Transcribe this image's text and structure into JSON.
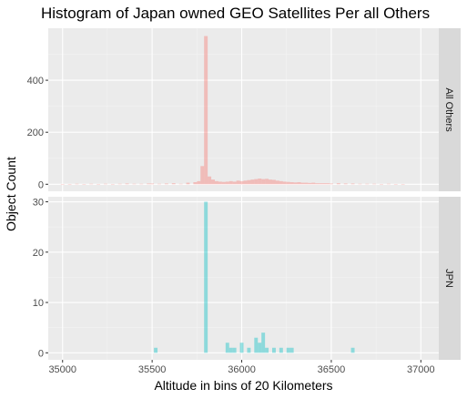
{
  "chart_data": {
    "type": "bar",
    "title": "Histogram of Japan owned GEO Satellites Per all Others",
    "xlabel": "Altitude in bins of 20 Kilometers",
    "ylabel": "Object Count",
    "bin_width": 20,
    "xlim": [
      34920,
      37100
    ],
    "x_ticks": [
      35000,
      35500,
      36000,
      36500,
      37000
    ],
    "grid": true,
    "legend": "none",
    "panels": [
      {
        "name": "All Others",
        "color": "#f8766d",
        "ylim": [
          0,
          600
        ],
        "y_ticks": [
          0,
          200,
          400
        ],
        "bins": [
          {
            "x": 35000,
            "count": 1
          },
          {
            "x": 35040,
            "count": 1
          },
          {
            "x": 35080,
            "count": 2
          },
          {
            "x": 35120,
            "count": 1
          },
          {
            "x": 35160,
            "count": 2
          },
          {
            "x": 35200,
            "count": 1
          },
          {
            "x": 35240,
            "count": 2
          },
          {
            "x": 35280,
            "count": 1
          },
          {
            "x": 35320,
            "count": 2
          },
          {
            "x": 35360,
            "count": 3
          },
          {
            "x": 35400,
            "count": 2
          },
          {
            "x": 35440,
            "count": 2
          },
          {
            "x": 35480,
            "count": 3
          },
          {
            "x": 35500,
            "count": 3
          },
          {
            "x": 35540,
            "count": 2
          },
          {
            "x": 35580,
            "count": 3
          },
          {
            "x": 35620,
            "count": 4
          },
          {
            "x": 35660,
            "count": 2
          },
          {
            "x": 35700,
            "count": 6
          },
          {
            "x": 35740,
            "count": 8
          },
          {
            "x": 35760,
            "count": 12
          },
          {
            "x": 35780,
            "count": 70
          },
          {
            "x": 35800,
            "count": 570
          },
          {
            "x": 35820,
            "count": 30
          },
          {
            "x": 35840,
            "count": 18
          },
          {
            "x": 35860,
            "count": 12
          },
          {
            "x": 35880,
            "count": 10
          },
          {
            "x": 35900,
            "count": 9
          },
          {
            "x": 35920,
            "count": 10
          },
          {
            "x": 35940,
            "count": 12
          },
          {
            "x": 35960,
            "count": 10
          },
          {
            "x": 35980,
            "count": 14
          },
          {
            "x": 36000,
            "count": 12
          },
          {
            "x": 36020,
            "count": 14
          },
          {
            "x": 36040,
            "count": 16
          },
          {
            "x": 36060,
            "count": 18
          },
          {
            "x": 36080,
            "count": 20
          },
          {
            "x": 36100,
            "count": 22
          },
          {
            "x": 36120,
            "count": 20
          },
          {
            "x": 36140,
            "count": 21
          },
          {
            "x": 36160,
            "count": 18
          },
          {
            "x": 36180,
            "count": 17
          },
          {
            "x": 36200,
            "count": 14
          },
          {
            "x": 36220,
            "count": 12
          },
          {
            "x": 36240,
            "count": 10
          },
          {
            "x": 36260,
            "count": 9
          },
          {
            "x": 36280,
            "count": 8
          },
          {
            "x": 36300,
            "count": 7
          },
          {
            "x": 36320,
            "count": 8
          },
          {
            "x": 36340,
            "count": 6
          },
          {
            "x": 36360,
            "count": 6
          },
          {
            "x": 36380,
            "count": 5
          },
          {
            "x": 36400,
            "count": 6
          },
          {
            "x": 36420,
            "count": 4
          },
          {
            "x": 36440,
            "count": 4
          },
          {
            "x": 36460,
            "count": 4
          },
          {
            "x": 36480,
            "count": 4
          },
          {
            "x": 36500,
            "count": 3
          },
          {
            "x": 36540,
            "count": 4
          },
          {
            "x": 36580,
            "count": 3
          },
          {
            "x": 36620,
            "count": 3
          },
          {
            "x": 36660,
            "count": 2
          },
          {
            "x": 36700,
            "count": 2
          },
          {
            "x": 36740,
            "count": 2
          },
          {
            "x": 36780,
            "count": 1
          },
          {
            "x": 36820,
            "count": 2
          },
          {
            "x": 36860,
            "count": 1
          },
          {
            "x": 36900,
            "count": 1
          }
        ]
      },
      {
        "name": "JPN",
        "color": "#00bfc4",
        "ylim": [
          0,
          31
        ],
        "y_ticks": [
          0,
          10,
          20,
          30
        ],
        "bins": [
          {
            "x": 35520,
            "count": 1
          },
          {
            "x": 35800,
            "count": 30
          },
          {
            "x": 35920,
            "count": 2
          },
          {
            "x": 35940,
            "count": 1
          },
          {
            "x": 35960,
            "count": 1
          },
          {
            "x": 36000,
            "count": 2
          },
          {
            "x": 36040,
            "count": 1
          },
          {
            "x": 36080,
            "count": 3
          },
          {
            "x": 36100,
            "count": 2
          },
          {
            "x": 36120,
            "count": 4
          },
          {
            "x": 36140,
            "count": 1
          },
          {
            "x": 36180,
            "count": 1
          },
          {
            "x": 36220,
            "count": 1
          },
          {
            "x": 36260,
            "count": 1
          },
          {
            "x": 36280,
            "count": 1
          },
          {
            "x": 36620,
            "count": 1
          }
        ]
      }
    ]
  }
}
